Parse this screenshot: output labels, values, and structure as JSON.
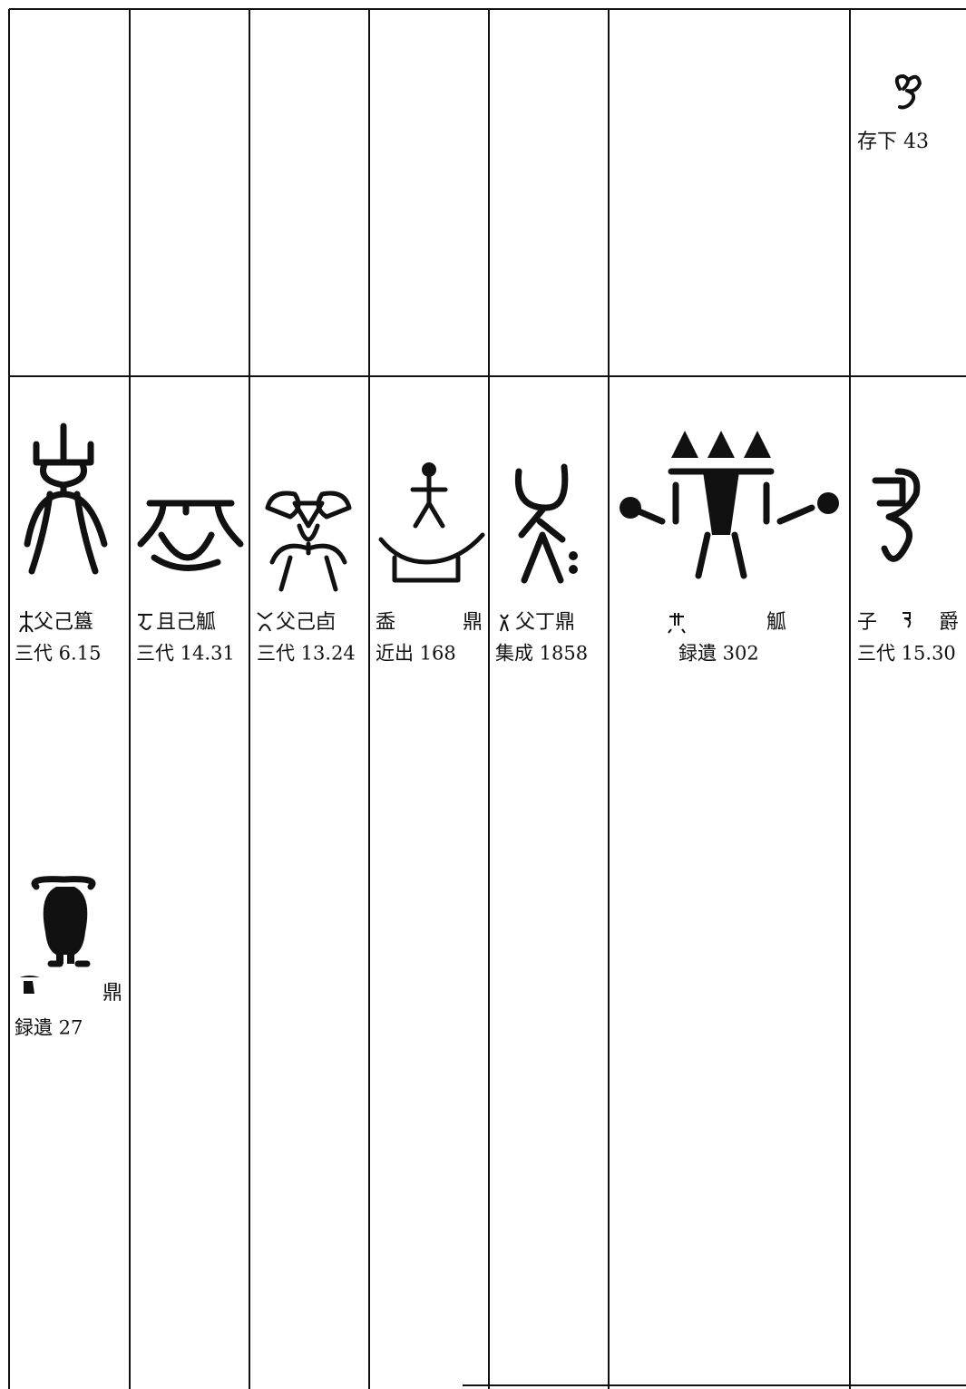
{
  "top_entry": {
    "source": "存下 43"
  },
  "entries": [
    {
      "name": [
        "父己簋"
      ],
      "source": "三代 6.15"
    },
    {
      "name": [
        "且己觚"
      ],
      "source": "三代 14.31"
    },
    {
      "name": [
        "父己卣"
      ],
      "source": "三代 13.24"
    },
    {
      "name": [
        "盉",
        "鼎"
      ],
      "source": "近出 168"
    },
    {
      "name": [
        "父丁鼎"
      ],
      "source": "集成 1858"
    },
    {
      "name": [
        "觚"
      ],
      "source": "録遺 302"
    },
    {
      "name": [
        "子",
        "爵"
      ],
      "source": "三代 15.30"
    }
  ],
  "bottom_entry": {
    "name": [
      "鼎"
    ],
    "source": "録遺 27"
  }
}
